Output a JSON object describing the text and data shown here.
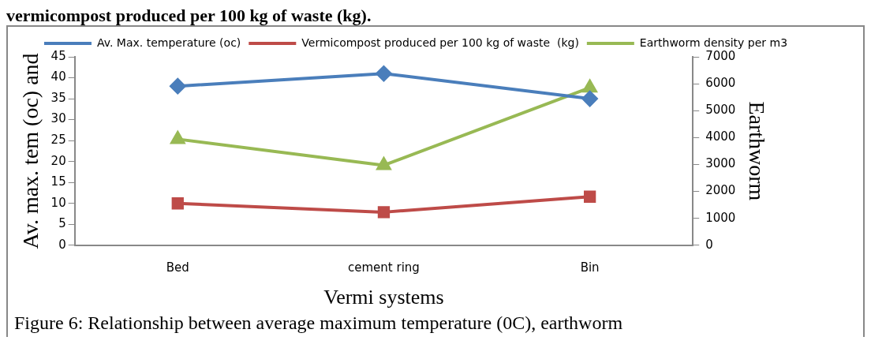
{
  "chart_data": {
    "type": "line",
    "title": "vermicompost produced per 100 kg of waste (kg).",
    "xlabel": "Vermi systems",
    "ylabel": "Av. max. tem (oc) and",
    "y2label": "Earthworm",
    "annotations": [
      "Figure 6: Relationship between average maximum temperature (0C), earthworm"
    ],
    "categories": [
      "Bed",
      "cement ring",
      "Bin"
    ],
    "series": [
      {
        "name": "Av. Max. temperature (oc)",
        "color": "#4a7ebb",
        "marker": "diamond",
        "values": [
          38,
          41,
          35
        ]
      },
      {
        "name": "Vermicompost produced per 100 kg of waste  (kg)",
        "color": "#be4b48",
        "marker": "square",
        "values": [
          10,
          7.9,
          11.6
        ]
      },
      {
        "name": "Earthworm density per m3",
        "color": "#98b954",
        "marker": "triangle",
        "axis": "y2",
        "values": [
          3940,
          2970,
          5850
        ]
      }
    ],
    "ylim": [
      0,
      45
    ],
    "yticks": [
      0,
      5,
      10,
      15,
      20,
      25,
      30,
      35,
      40,
      45
    ],
    "y2lim": [
      0,
      7000
    ],
    "y2ticks": [
      0,
      1000,
      2000,
      3000,
      4000,
      5000,
      6000,
      7000
    ],
    "grid": false,
    "legend": "top",
    "line_style": "solid"
  }
}
